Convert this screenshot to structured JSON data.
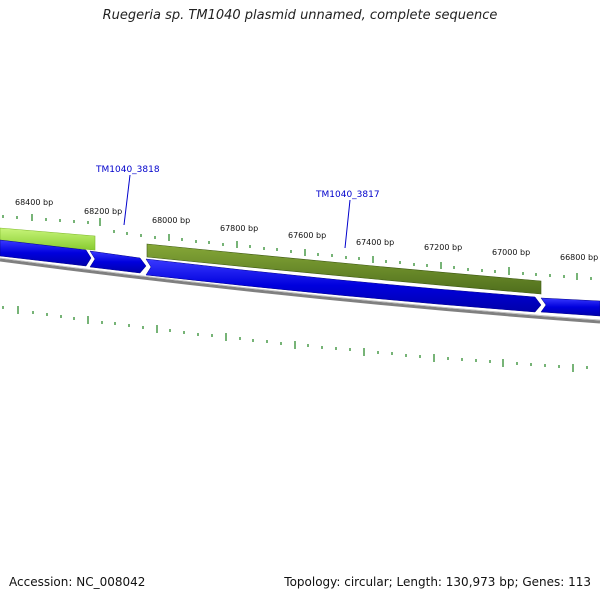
{
  "title": "Ruegeria sp. TM1040 plasmid unnamed, complete sequence",
  "footer": {
    "accession": "Accession: NC_008042",
    "summary": "Topology: circular; Length: 130,973 bp; Genes: 113"
  },
  "ruler": {
    "unit": "bp",
    "labels": [
      "68400 bp",
      "68200 bp",
      "68000 bp",
      "67800 bp",
      "67600 bp",
      "67400 bp",
      "67200 bp",
      "67000 bp",
      "66800 bp"
    ]
  },
  "genes": [
    {
      "locus_tag": "TM1040_3818"
    },
    {
      "locus_tag": "TM1040_3817"
    }
  ],
  "colors": {
    "cds": "#0000ee",
    "feature_light": "#a5e64a",
    "feature_dark": "#6b8c2a",
    "backbone": "#888888",
    "tick": "#2e8b2e",
    "gene_label": "#0000cc"
  }
}
